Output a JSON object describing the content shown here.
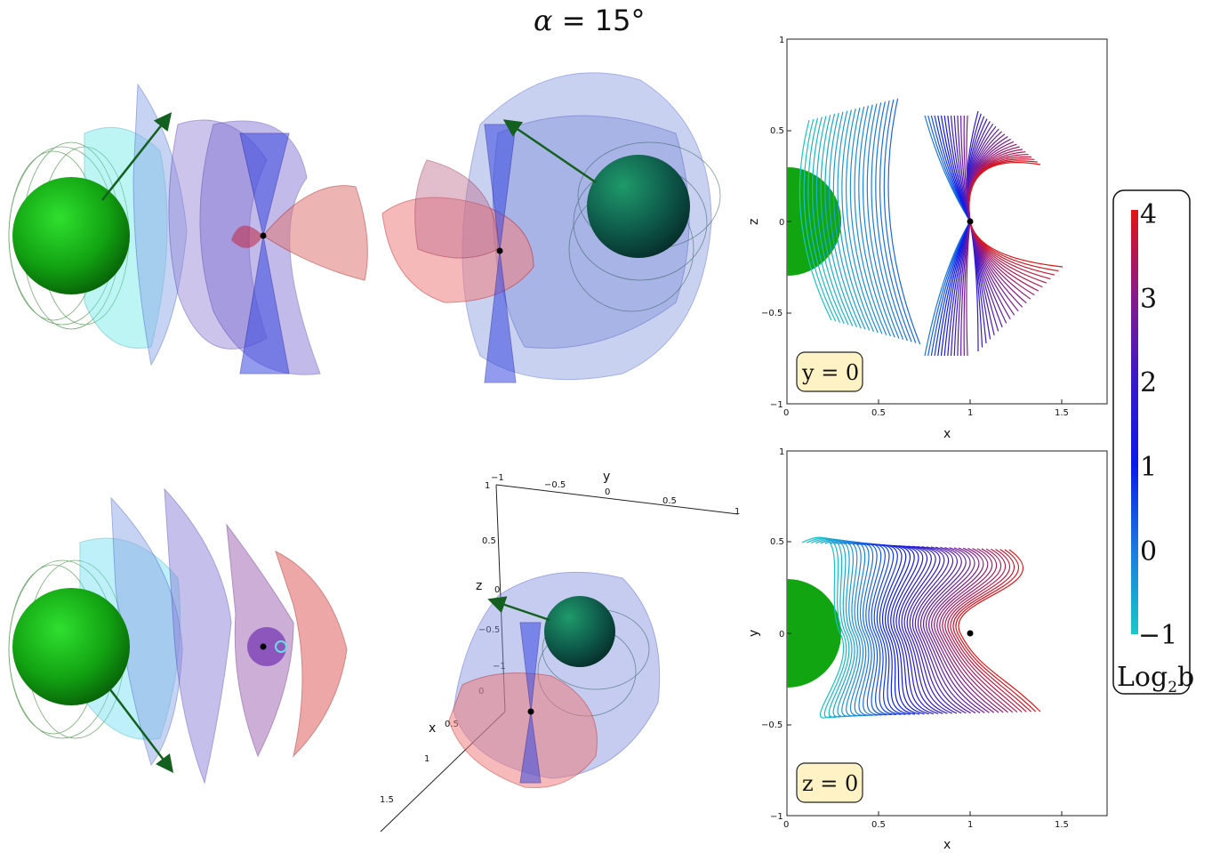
{
  "title": {
    "symbol": "α",
    "rest": " = 15°"
  },
  "top_plot": {
    "badge": "y = 0",
    "xlabel": "x",
    "ylabel": "z",
    "xticks": [
      "0",
      "0.5",
      "1",
      "1.5"
    ],
    "yticks": [
      "1",
      "0.5",
      "0",
      "−0.5",
      "−1"
    ]
  },
  "bottom_plot": {
    "badge": "z = 0",
    "xlabel": "x",
    "ylabel": "y",
    "xticks": [
      "0",
      "0.5",
      "1",
      "1.5"
    ],
    "yticks": [
      "1",
      "0.5",
      "0",
      "−0.5",
      "−1"
    ]
  },
  "axes3d": {
    "y_label": "y",
    "z_label": "z",
    "x_label": "x",
    "y_ticks": [
      "−1",
      "−0.5",
      "0",
      "0.5",
      "1"
    ],
    "z_ticks": [
      "1",
      "0.5",
      "0",
      "−0.5",
      "−1"
    ],
    "x_ticks": [
      "0",
      "0.5",
      "1",
      "1.5"
    ]
  },
  "colorbar": {
    "ticks": [
      "4",
      "3",
      "2",
      "1",
      "0",
      "−1"
    ],
    "label_main": "Log",
    "label_sub": "2",
    "label_tail": "b",
    "colors": [
      "#d81b2a",
      "#6a1fa8",
      "#2424d8",
      "#1f6fd8",
      "#18b4c8"
    ]
  },
  "colors": {
    "sphere": "#1fae1f",
    "arrow": "#14601e",
    "dot": "#000000"
  }
}
